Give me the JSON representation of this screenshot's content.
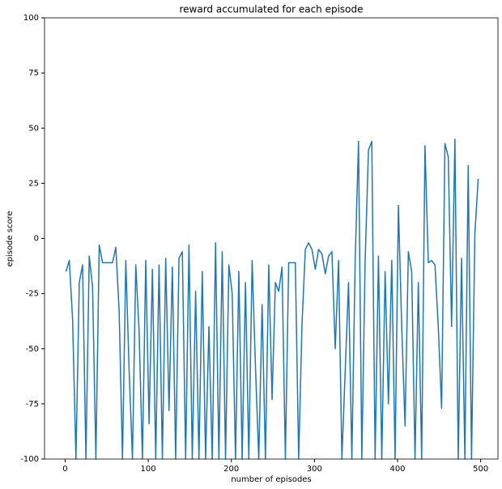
{
  "chart_data": {
    "type": "line",
    "title": "reward accumulated for each episode",
    "xlabel": "number of episodes",
    "ylabel": "episode score",
    "xlim": [
      -24.8,
      520.8
    ],
    "ylim": [
      -100,
      100
    ],
    "xticks": [
      0,
      100,
      200,
      300,
      400,
      500
    ],
    "yticks": [
      -100,
      -75,
      -50,
      -25,
      0,
      25,
      50,
      75,
      100
    ],
    "grid": false,
    "series": [
      {
        "name": "episode score",
        "color": "#1f77b4",
        "x": [
          1,
          5,
          9,
          13,
          17,
          21,
          25,
          29,
          33,
          37,
          41,
          45,
          49,
          53,
          57,
          61,
          65,
          69,
          73,
          77,
          81,
          85,
          89,
          93,
          97,
          101,
          105,
          109,
          113,
          117,
          121,
          125,
          129,
          133,
          137,
          141,
          145,
          149,
          153,
          157,
          161,
          165,
          169,
          173,
          177,
          181,
          185,
          189,
          193,
          197,
          201,
          205,
          209,
          213,
          217,
          221,
          225,
          229,
          233,
          237,
          241,
          245,
          249,
          253,
          257,
          261,
          265,
          269,
          273,
          277,
          281,
          285,
          289,
          293,
          297,
          301,
          305,
          309,
          313,
          317,
          321,
          325,
          329,
          333,
          337,
          341,
          345,
          349,
          353,
          357,
          361,
          365,
          369,
          373,
          377,
          381,
          385,
          389,
          393,
          397,
          401,
          405,
          409,
          413,
          417,
          421,
          425,
          429,
          433,
          437,
          441,
          445,
          449,
          453,
          457,
          461,
          465,
          469,
          473,
          477,
          481,
          485,
          489,
          493,
          497
        ],
        "values": [
          -15,
          -10,
          -37,
          -100,
          -20,
          -12,
          -100,
          -8,
          -22,
          -100,
          -3,
          -11,
          -11,
          -11,
          -11,
          -4,
          -33,
          -100,
          -10,
          -60,
          -100,
          -12,
          -42,
          -100,
          -10,
          -84,
          -14,
          -100,
          -12,
          -100,
          -9,
          -78,
          -13,
          -100,
          -9,
          -6,
          -100,
          -3,
          -100,
          -24,
          -100,
          -15,
          -100,
          -40,
          -100,
          -2,
          -100,
          -6,
          -100,
          -12,
          -25,
          -100,
          -15,
          -100,
          -20,
          -100,
          -10,
          -58,
          -100,
          -30,
          -100,
          -12,
          -73,
          -20,
          -24,
          -13,
          -100,
          -11,
          -11,
          -11,
          -100,
          -39,
          -5,
          -2,
          -5,
          -14,
          -5,
          -7,
          -16,
          -8,
          -6,
          -50,
          -10,
          -100,
          -60,
          -20,
          -100,
          -10,
          44,
          -100,
          -10,
          40,
          44,
          -100,
          -8,
          -100,
          -15,
          -75,
          -10,
          -100,
          15,
          -40,
          -85,
          -6,
          -15,
          -100,
          -20,
          -100,
          42,
          -11,
          -10,
          -12,
          -40,
          -77,
          43,
          37,
          -40,
          45,
          -100,
          -9,
          -100,
          33,
          -100,
          2,
          27
        ]
      }
    ]
  }
}
